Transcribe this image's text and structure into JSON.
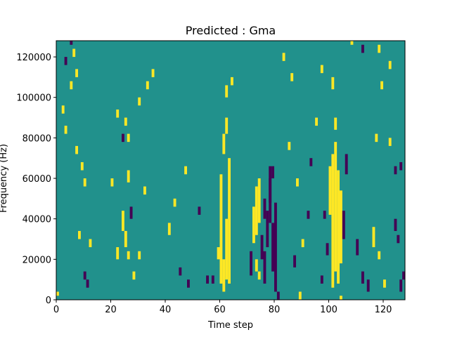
{
  "chart_data": {
    "type": "heatmap",
    "title": "Predicted : Gma",
    "xlabel": "Time step",
    "ylabel": "Frequency (Hz)",
    "xlim": [
      0,
      128
    ],
    "ylim": [
      0,
      128000
    ],
    "x_ticks": [
      0,
      20,
      40,
      60,
      80,
      100,
      120
    ],
    "y_ticks": [
      0,
      20000,
      40000,
      60000,
      80000,
      100000,
      120000
    ],
    "x_tick_labels": [
      "0",
      "20",
      "40",
      "60",
      "80",
      "100",
      "120"
    ],
    "y_tick_labels": [
      "0",
      "20000",
      "40000",
      "60000",
      "80000",
      "100000",
      "120000"
    ],
    "grid": false,
    "legend": "none",
    "levels": [
      -1,
      0,
      1
    ],
    "colors": {
      "-1": "#440154",
      "0": "#21918c",
      "1": "#fde725"
    },
    "background_level": 0,
    "bin_width_hz": 2000,
    "cells": [
      {
        "t": 0,
        "f_from": 2000,
        "f_to": 4000,
        "level": 1
      },
      {
        "t": 10,
        "f_from": 10000,
        "f_to": 14000,
        "level": -1
      },
      {
        "t": 11,
        "f_from": 6000,
        "f_to": 10000,
        "level": -1
      },
      {
        "t": 8,
        "f_from": 30000,
        "f_to": 34000,
        "level": 1
      },
      {
        "t": 12,
        "f_from": 26000,
        "f_to": 30000,
        "level": 1
      },
      {
        "t": 10,
        "f_from": 56000,
        "f_to": 60000,
        "level": 1
      },
      {
        "t": 9,
        "f_from": 64000,
        "f_to": 68000,
        "level": 1
      },
      {
        "t": 7,
        "f_from": 72000,
        "f_to": 76000,
        "level": 1
      },
      {
        "t": 3,
        "f_from": 82000,
        "f_to": 86000,
        "level": 1
      },
      {
        "t": 2,
        "f_from": 92000,
        "f_to": 96000,
        "level": 1
      },
      {
        "t": 5,
        "f_from": 104000,
        "f_to": 108000,
        "level": 1
      },
      {
        "t": 7,
        "f_from": 110000,
        "f_to": 114000,
        "level": 1
      },
      {
        "t": 3,
        "f_from": 116000,
        "f_to": 120000,
        "level": -1
      },
      {
        "t": 6,
        "f_from": 120000,
        "f_to": 124000,
        "level": 1
      },
      {
        "t": 5,
        "f_from": 126000,
        "f_to": 128000,
        "level": -1
      },
      {
        "t": 22,
        "f_from": 20000,
        "f_to": 26000,
        "level": 1
      },
      {
        "t": 24,
        "f_from": 34000,
        "f_to": 44000,
        "level": 1
      },
      {
        "t": 25,
        "f_from": 26000,
        "f_to": 34000,
        "level": 1
      },
      {
        "t": 26,
        "f_from": 20000,
        "f_to": 24000,
        "level": 1
      },
      {
        "t": 27,
        "f_from": 40000,
        "f_to": 46000,
        "level": -1
      },
      {
        "t": 24,
        "f_from": 78000,
        "f_to": 82000,
        "level": -1
      },
      {
        "t": 26,
        "f_from": 78000,
        "f_to": 82000,
        "level": 1
      },
      {
        "t": 25,
        "f_from": 86000,
        "f_to": 90000,
        "level": 1
      },
      {
        "t": 22,
        "f_from": 90000,
        "f_to": 94000,
        "level": 1
      },
      {
        "t": 26,
        "f_from": 58000,
        "f_to": 64000,
        "level": 1
      },
      {
        "t": 20,
        "f_from": 56000,
        "f_to": 60000,
        "level": 1
      },
      {
        "t": 28,
        "f_from": 10000,
        "f_to": 14000,
        "level": 1
      },
      {
        "t": 30,
        "f_from": 20000,
        "f_to": 24000,
        "level": 1
      },
      {
        "t": 32,
        "f_from": 52000,
        "f_to": 56000,
        "level": 1
      },
      {
        "t": 30,
        "f_from": 96000,
        "f_to": 100000,
        "level": 1
      },
      {
        "t": 33,
        "f_from": 104000,
        "f_to": 108000,
        "level": 1
      },
      {
        "t": 35,
        "f_from": 110000,
        "f_to": 114000,
        "level": 1
      },
      {
        "t": 41,
        "f_from": 32000,
        "f_to": 38000,
        "level": 1
      },
      {
        "t": 43,
        "f_from": 46000,
        "f_to": 50000,
        "level": 1
      },
      {
        "t": 45,
        "f_from": 12000,
        "f_to": 16000,
        "level": -1
      },
      {
        "t": 47,
        "f_from": 62000,
        "f_to": 66000,
        "level": 1
      },
      {
        "t": 48,
        "f_from": 6000,
        "f_to": 10000,
        "level": -1
      },
      {
        "t": 52,
        "f_from": 42000,
        "f_to": 46000,
        "level": -1
      },
      {
        "t": 55,
        "f_from": 8000,
        "f_to": 12000,
        "level": -1
      },
      {
        "t": 58,
        "f_from": 0,
        "f_to": 0,
        "level": 1
      },
      {
        "t": 60,
        "f_from": 8000,
        "f_to": 62000,
        "level": 1
      },
      {
        "t": 61,
        "f_from": 4000,
        "f_to": 20000,
        "level": 1
      },
      {
        "t": 62,
        "f_from": 10000,
        "f_to": 40000,
        "level": 1
      },
      {
        "t": 63,
        "f_from": 8000,
        "f_to": 70000,
        "level": 1
      },
      {
        "t": 62,
        "f_from": 82000,
        "f_to": 90000,
        "level": 1
      },
      {
        "t": 61,
        "f_from": 72000,
        "f_to": 82000,
        "level": 1
      },
      {
        "t": 62,
        "f_from": 100000,
        "f_to": 106000,
        "level": 1
      },
      {
        "t": 64,
        "f_from": 106000,
        "f_to": 110000,
        "level": 1
      },
      {
        "t": 57,
        "f_from": 8000,
        "f_to": 12000,
        "level": -1
      },
      {
        "t": 59,
        "f_from": 20000,
        "f_to": 26000,
        "level": 1
      },
      {
        "t": 72,
        "f_from": 28000,
        "f_to": 46000,
        "level": 1
      },
      {
        "t": 73,
        "f_from": 32000,
        "f_to": 56000,
        "level": 1
      },
      {
        "t": 74,
        "f_from": 38000,
        "f_to": 60000,
        "level": 1
      },
      {
        "t": 71,
        "f_from": 12000,
        "f_to": 24000,
        "level": -1
      },
      {
        "t": 73,
        "f_from": 14000,
        "f_to": 20000,
        "level": 1
      },
      {
        "t": 75,
        "f_from": 20000,
        "f_to": 32000,
        "level": -1
      },
      {
        "t": 76,
        "f_from": 8000,
        "f_to": 24000,
        "level": -1
      },
      {
        "t": 77,
        "f_from": 26000,
        "f_to": 44000,
        "level": -1
      },
      {
        "t": 78,
        "f_from": 38000,
        "f_to": 60000,
        "level": -1
      },
      {
        "t": 79,
        "f_from": 14000,
        "f_to": 38000,
        "level": -1
      },
      {
        "t": 80,
        "f_from": 4000,
        "f_to": 48000,
        "level": -1
      },
      {
        "t": 78,
        "f_from": 48000,
        "f_to": 66000,
        "level": -1
      },
      {
        "t": 81,
        "f_from": 0,
        "f_to": 4000,
        "level": -1
      },
      {
        "t": 76,
        "f_from": 40000,
        "f_to": 50000,
        "level": -1
      },
      {
        "t": 79,
        "f_from": 60000,
        "f_to": 66000,
        "level": -1
      },
      {
        "t": 74,
        "f_from": 10000,
        "f_to": 14000,
        "level": 1
      },
      {
        "t": 100,
        "f_from": 42000,
        "f_to": 66000,
        "level": 1
      },
      {
        "t": 101,
        "f_from": 6000,
        "f_to": 72000,
        "level": 1
      },
      {
        "t": 102,
        "f_from": 14000,
        "f_to": 78000,
        "level": 1
      },
      {
        "t": 103,
        "f_from": 8000,
        "f_to": 64000,
        "level": 1
      },
      {
        "t": 104,
        "f_from": 18000,
        "f_to": 54000,
        "level": 1
      },
      {
        "t": 102,
        "f_from": 84000,
        "f_to": 90000,
        "level": 1
      },
      {
        "t": 101,
        "f_from": 104000,
        "f_to": 110000,
        "level": 1
      },
      {
        "t": 105,
        "f_from": 30000,
        "f_to": 44000,
        "level": -1
      },
      {
        "t": 106,
        "f_from": 62000,
        "f_to": 72000,
        "level": -1
      },
      {
        "t": 99,
        "f_from": 22000,
        "f_to": 28000,
        "level": -1
      },
      {
        "t": 98,
        "f_from": 40000,
        "f_to": 44000,
        "level": -1
      },
      {
        "t": 97,
        "f_from": 8000,
        "f_to": 12000,
        "level": -1
      },
      {
        "t": 104,
        "f_from": 0,
        "f_to": 2000,
        "level": 1
      },
      {
        "t": 110,
        "f_from": 22000,
        "f_to": 30000,
        "level": -1
      },
      {
        "t": 112,
        "f_from": 8000,
        "f_to": 14000,
        "level": -1
      },
      {
        "t": 114,
        "f_from": 4000,
        "f_to": 10000,
        "level": -1
      },
      {
        "t": 116,
        "f_from": 26000,
        "f_to": 36000,
        "level": 1
      },
      {
        "t": 118,
        "f_from": 20000,
        "f_to": 24000,
        "level": 1
      },
      {
        "t": 120,
        "f_from": 6000,
        "f_to": 10000,
        "level": 1
      },
      {
        "t": 124,
        "f_from": 34000,
        "f_to": 40000,
        "level": -1
      },
      {
        "t": 125,
        "f_from": 28000,
        "f_to": 32000,
        "level": -1
      },
      {
        "t": 126,
        "f_from": 4000,
        "f_to": 10000,
        "level": -1
      },
      {
        "t": 127,
        "f_from": 10000,
        "f_to": 14000,
        "level": -1
      },
      {
        "t": 124,
        "f_from": 62000,
        "f_to": 66000,
        "level": -1
      },
      {
        "t": 126,
        "f_from": 64000,
        "f_to": 68000,
        "level": -1
      },
      {
        "t": 122,
        "f_from": 76000,
        "f_to": 80000,
        "level": 1
      },
      {
        "t": 117,
        "f_from": 78000,
        "f_to": 82000,
        "level": 1
      },
      {
        "t": 119,
        "f_from": 104000,
        "f_to": 108000,
        "level": 1
      },
      {
        "t": 122,
        "f_from": 114000,
        "f_to": 118000,
        "level": 1
      },
      {
        "t": 118,
        "f_from": 122000,
        "f_to": 126000,
        "level": 1
      },
      {
        "t": 112,
        "f_from": 122000,
        "f_to": 126000,
        "level": -1
      },
      {
        "t": 108,
        "f_from": 126000,
        "f_to": 128000,
        "level": 1
      },
      {
        "t": 87,
        "f_from": 16000,
        "f_to": 22000,
        "level": -1
      },
      {
        "t": 89,
        "f_from": 0,
        "f_to": 4000,
        "level": 1
      },
      {
        "t": 90,
        "f_from": 26000,
        "f_to": 30000,
        "level": 1
      },
      {
        "t": 92,
        "f_from": 40000,
        "f_to": 44000,
        "level": -1
      },
      {
        "t": 93,
        "f_from": 66000,
        "f_to": 70000,
        "level": -1
      },
      {
        "t": 95,
        "f_from": 86000,
        "f_to": 90000,
        "level": 1
      },
      {
        "t": 97,
        "f_from": 112000,
        "f_to": 116000,
        "level": 1
      },
      {
        "t": 86,
        "f_from": 108000,
        "f_to": 112000,
        "level": 1
      },
      {
        "t": 83,
        "f_from": 118000,
        "f_to": 122000,
        "level": 1
      },
      {
        "t": 88,
        "f_from": 56000,
        "f_to": 60000,
        "level": 1
      },
      {
        "t": 85,
        "f_from": 74000,
        "f_to": 78000,
        "level": 1
      }
    ]
  }
}
